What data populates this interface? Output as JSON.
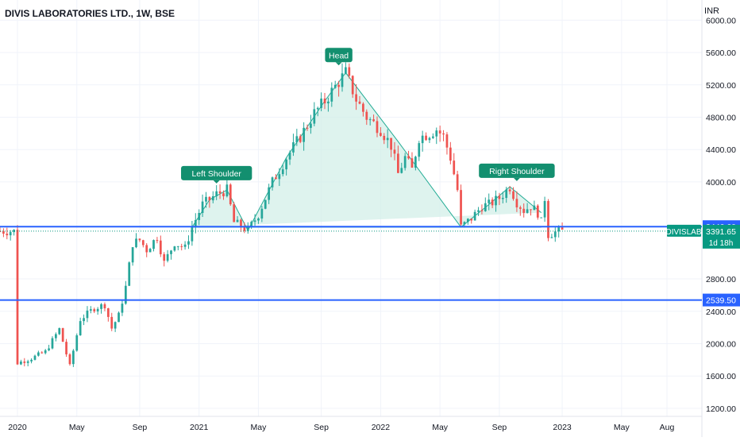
{
  "chart_title": "DIVIS LABORATORIES LTD., 1W, BSE",
  "currency": "INR",
  "chart_data": {
    "type": "candlestick",
    "title": "DIVIS LABORATORIES LTD., 1W, BSE",
    "ylim": [
      1150,
      6200
    ],
    "y_ticks": [
      "6000.00",
      "5600.00",
      "5200.00",
      "4800.00",
      "4400.00",
      "4000.00",
      "2800.00",
      "2400.00",
      "2000.00",
      "1600.00",
      "1200.00"
    ],
    "y_tick_values": [
      6000,
      5600,
      5200,
      4800,
      4400,
      4000,
      2800,
      2400,
      2000,
      1600,
      1200
    ],
    "x_ticks": [
      "2020",
      "May",
      "Sep",
      "2021",
      "May",
      "Sep",
      "2022",
      "May",
      "Sep",
      "2023",
      "May",
      "Aug"
    ],
    "x_tick_weeks": [
      0,
      17,
      35,
      52,
      69,
      87,
      104,
      121,
      138,
      156,
      173,
      186
    ],
    "x_start_week": -5,
    "x_end_week": 196,
    "levels": [
      {
        "label": "3446.60",
        "value": 3446.6,
        "color": "#2962ff"
      },
      {
        "label": "2539.50",
        "value": 2539.5,
        "color": "#2962ff"
      }
    ],
    "last_price": {
      "symbol": "DIVISLAB",
      "price_label": "3391.65",
      "price": 3391.65,
      "countdown": "1d 18h",
      "color": "#089981"
    },
    "annotations": [
      {
        "label": "Left Shoulder",
        "week": 57,
        "value": 4020
      },
      {
        "label": "Head",
        "week": 92,
        "value": 5480
      },
      {
        "label": "Right Shoulder",
        "week": 143,
        "value": 4050
      }
    ],
    "pattern_polygon": [
      {
        "week": 50,
        "value": 3440
      },
      {
        "week": 55,
        "value": 3780
      },
      {
        "week": 60,
        "value": 3900
      },
      {
        "week": 66,
        "value": 3400
      },
      {
        "week": 77,
        "value": 4300
      },
      {
        "week": 88,
        "value": 5000
      },
      {
        "week": 94,
        "value": 5350
      },
      {
        "week": 109,
        "value": 4500
      },
      {
        "week": 127,
        "value": 3440
      },
      {
        "week": 135,
        "value": 3720
      },
      {
        "week": 141,
        "value": 3940
      },
      {
        "week": 150,
        "value": 3620
      }
    ],
    "neckline_value": 3440,
    "colors": {
      "up": "#26a69a",
      "down": "#ef5350",
      "pattern_fill": "#d3efe8",
      "pattern_line": "#22ab94",
      "label_bg": "#138f6f",
      "grid": "#f0f3fa"
    },
    "anchors": [
      [
        0,
        1760
      ],
      [
        4,
        1820
      ],
      [
        8,
        1900
      ],
      [
        12,
        2180
      ],
      [
        15,
        1720
      ],
      [
        18,
        2300
      ],
      [
        22,
        2440
      ],
      [
        25,
        2480
      ],
      [
        27,
        2190
      ],
      [
        29,
        2350
      ],
      [
        31,
        2700
      ],
      [
        33,
        3240
      ],
      [
        35,
        3280
      ],
      [
        37,
        3160
      ],
      [
        40,
        3320
      ],
      [
        42,
        3000
      ],
      [
        45,
        3250
      ],
      [
        48,
        3180
      ],
      [
        50,
        3440
      ],
      [
        53,
        3720
      ],
      [
        55,
        3780
      ],
      [
        57,
        3850
      ],
      [
        60,
        3900
      ],
      [
        62,
        3500
      ],
      [
        64,
        3450
      ],
      [
        66,
        3400
      ],
      [
        69,
        3600
      ],
      [
        73,
        4000
      ],
      [
        77,
        4300
      ],
      [
        81,
        4560
      ],
      [
        85,
        4850
      ],
      [
        88,
        5000
      ],
      [
        90,
        5120
      ],
      [
        92,
        5240
      ],
      [
        94,
        5350
      ],
      [
        97,
        5020
      ],
      [
        100,
        4800
      ],
      [
        104,
        4650
      ],
      [
        107,
        4450
      ],
      [
        109,
        4100
      ],
      [
        111,
        4300
      ],
      [
        113,
        4150
      ],
      [
        115,
        4550
      ],
      [
        118,
        4600
      ],
      [
        120,
        4650
      ],
      [
        122,
        4560
      ],
      [
        124,
        4300
      ],
      [
        126,
        3900
      ],
      [
        127,
        3440
      ],
      [
        130,
        3550
      ],
      [
        133,
        3700
      ],
      [
        135,
        3720
      ],
      [
        138,
        3800
      ],
      [
        141,
        3940
      ],
      [
        143,
        3750
      ],
      [
        145,
        3650
      ],
      [
        147,
        3700
      ],
      [
        149,
        3620
      ],
      [
        150,
        3500
      ],
      [
        151,
        3800
      ],
      [
        152,
        3350
      ],
      [
        154,
        3380
      ],
      [
        156,
        3390
      ]
    ]
  }
}
